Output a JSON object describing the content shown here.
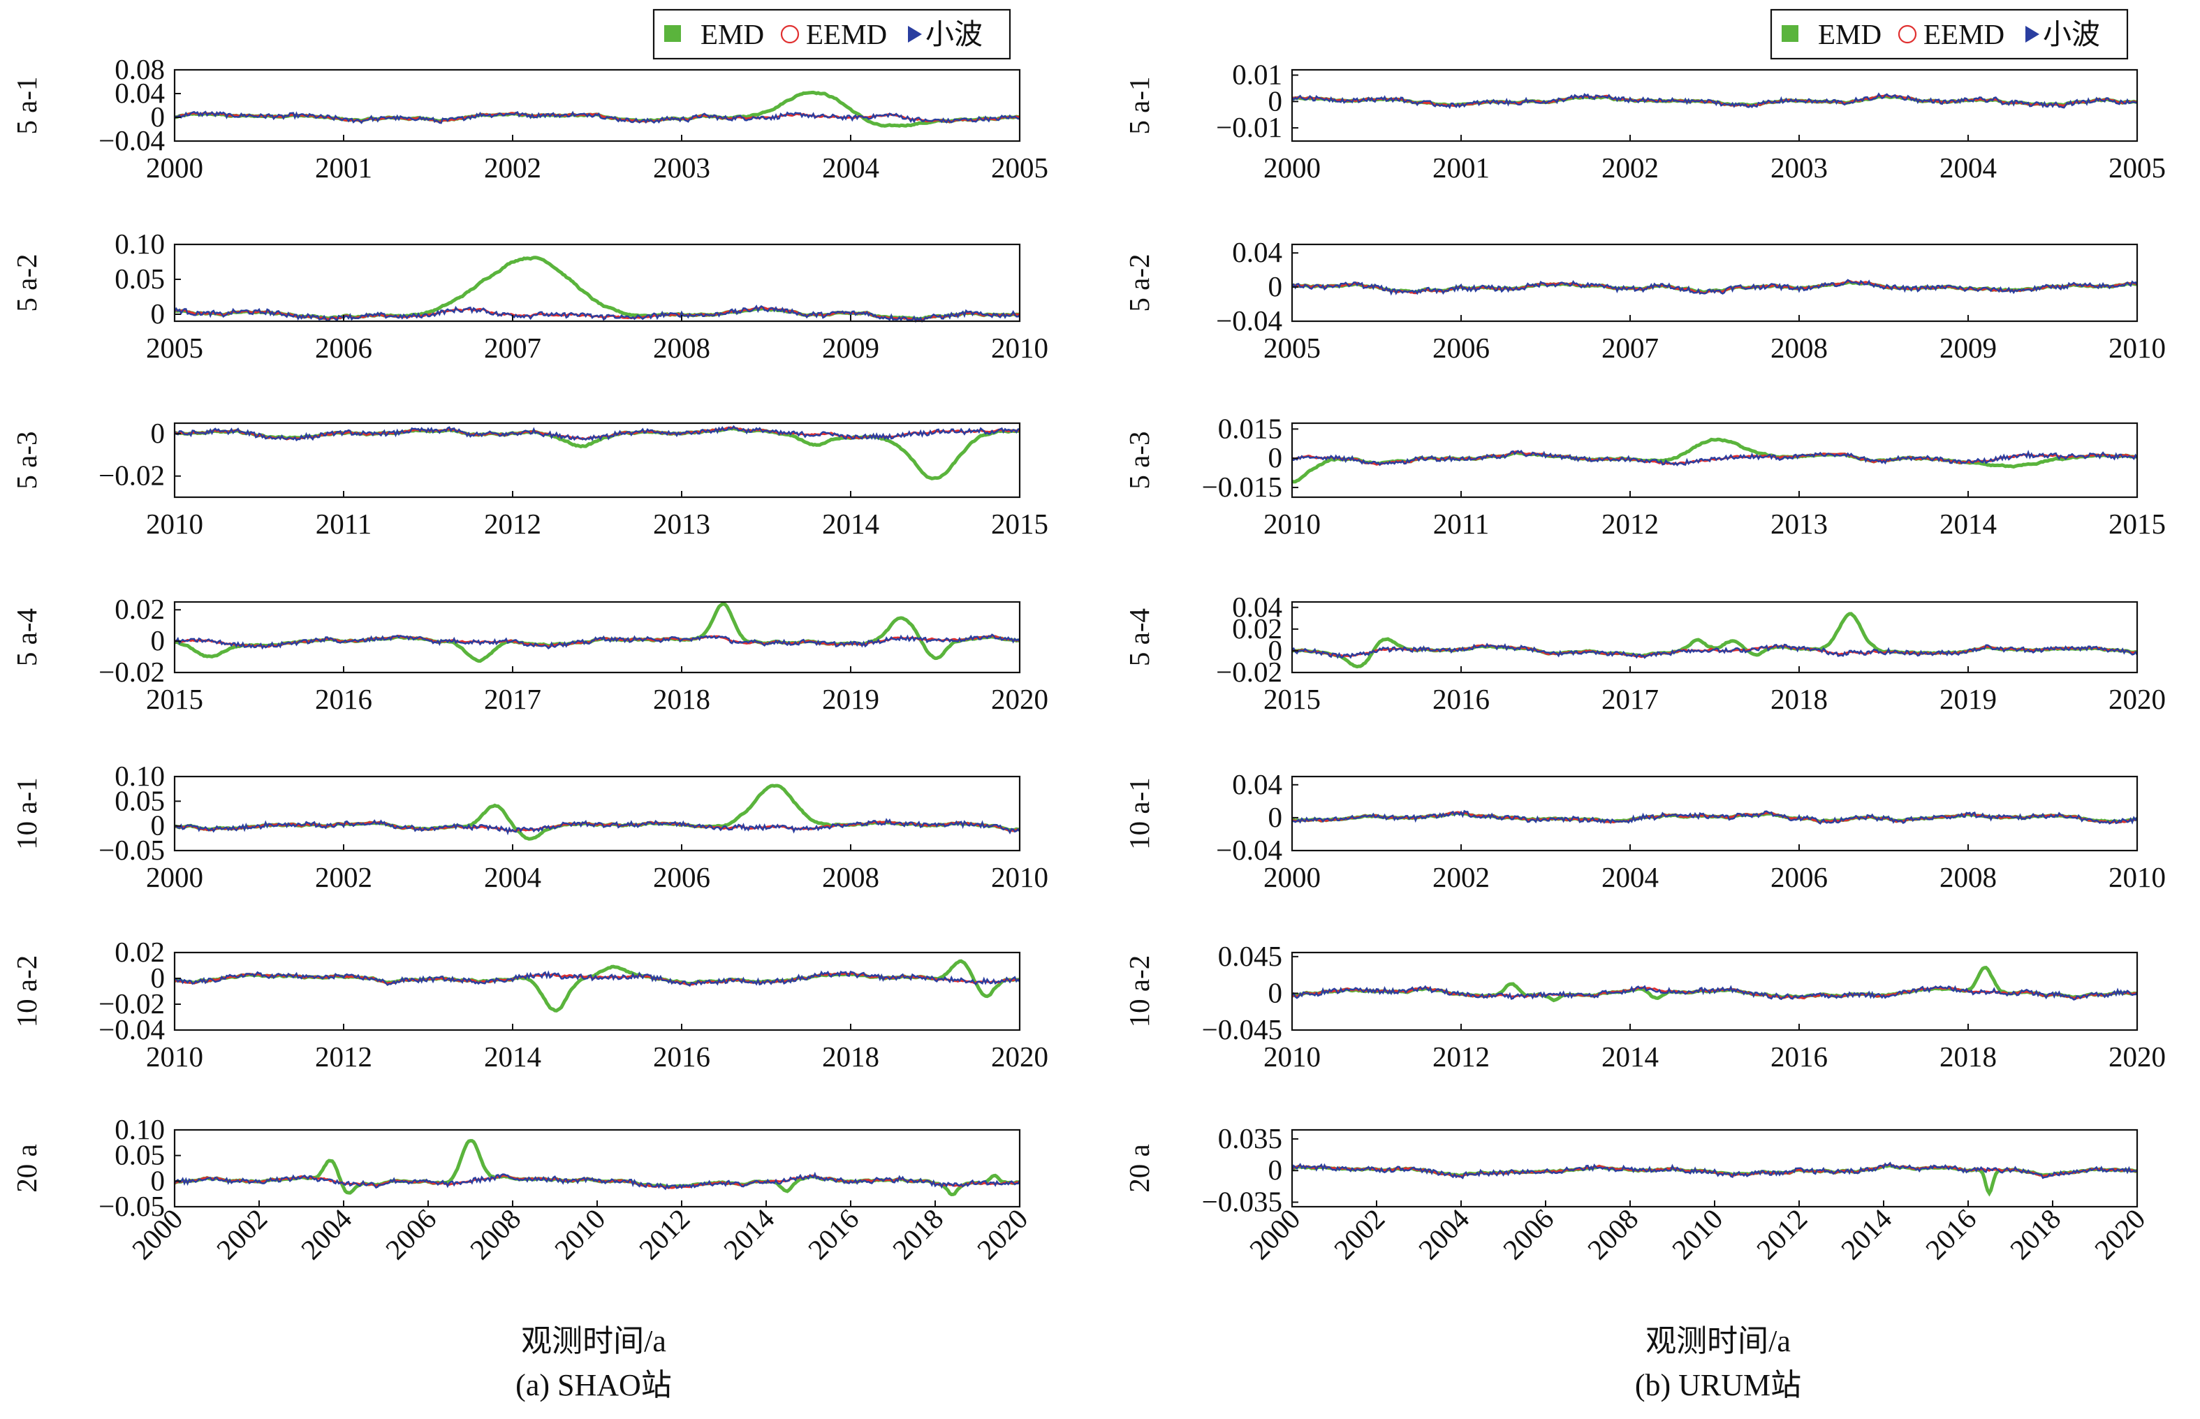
{
  "figure": {
    "xlabel_left": "观测时间/a",
    "caption_left": "(a) SHAO站",
    "xlabel_right": "观测时间/a",
    "caption_right": "(b) URUM站"
  },
  "legend": {
    "items": [
      {
        "label": "EMD",
        "marker": "square",
        "color": "#5ab43c"
      },
      {
        "label": "EEMD",
        "marker": "circle",
        "color": "#e03030"
      },
      {
        "label": "小波",
        "marker": "triangle",
        "color": "#2a3ea0"
      }
    ]
  },
  "colors": {
    "emd": "#5ab43c",
    "eemd": "#e03030",
    "wavelet": "#2a3ea0"
  },
  "chart_data": [
    {
      "type": "line",
      "ylabel": "5 a-1",
      "x": [
        2000,
        2001,
        2002,
        2003,
        2004,
        2005
      ],
      "yticks": [
        -0.04,
        0,
        0.04,
        0.08
      ],
      "ytick_labels": [
        "−0.04",
        "0",
        "0.04",
        "0.08"
      ],
      "xlim": [
        2000,
        2005
      ],
      "ylim": [
        -0.04,
        0.08
      ],
      "series": [
        {
          "name": "EMD",
          "color": "#5ab43c",
          "bumps": [
            {
              "x": 2003.8,
              "amp": 0.04,
              "w": 0.25
            },
            {
              "x": 2004.2,
              "amp": -0.02,
              "w": 0.2
            }
          ]
        },
        {
          "name": "EEMD",
          "color": "#e03030"
        },
        {
          "name": "小波",
          "color": "#2a3ea0"
        }
      ]
    },
    {
      "type": "line",
      "ylabel": "5 a-2",
      "x": [
        2005,
        2006,
        2007,
        2008,
        2009,
        2010
      ],
      "yticks": [
        0,
        0.05,
        0.1
      ],
      "ytick_labels": [
        "0",
        "0.05",
        "0.10"
      ],
      "xlim": [
        2005,
        2010
      ],
      "ylim": [
        -0.01,
        0.1
      ],
      "series": [
        {
          "name": "EMD",
          "color": "#5ab43c",
          "bumps": [
            {
              "x": 2007.1,
              "amp": 0.082,
              "w": 0.34
            }
          ]
        },
        {
          "name": "EEMD",
          "color": "#e03030"
        },
        {
          "name": "小波",
          "color": "#2a3ea0"
        }
      ]
    },
    {
      "type": "line",
      "ylabel": "5 a-3",
      "x": [
        2010,
        2011,
        2012,
        2013,
        2014,
        2015
      ],
      "yticks": [
        -0.02,
        0
      ],
      "ytick_labels": [
        "−0.02",
        "0"
      ],
      "xlim": [
        2010,
        2015
      ],
      "ylim": [
        -0.03,
        0.005
      ],
      "series": [
        {
          "name": "EMD",
          "color": "#5ab43c",
          "bumps": [
            {
              "x": 2014.5,
              "amp": -0.022,
              "w": 0.18
            },
            {
              "x": 2012.4,
              "amp": -0.004,
              "w": 0.12
            },
            {
              "x": 2013.8,
              "amp": -0.005,
              "w": 0.12
            }
          ]
        },
        {
          "name": "EEMD",
          "color": "#e03030"
        },
        {
          "name": "小波",
          "color": "#2a3ea0"
        }
      ]
    },
    {
      "type": "line",
      "ylabel": "5 a-4",
      "x": [
        2015,
        2016,
        2017,
        2018,
        2019,
        2020
      ],
      "yticks": [
        -0.02,
        0,
        0.02
      ],
      "ytick_labels": [
        "−0.02",
        "0",
        "0.02"
      ],
      "xlim": [
        2015,
        2020
      ],
      "ylim": [
        -0.02,
        0.025
      ],
      "series": [
        {
          "name": "EMD",
          "color": "#5ab43c",
          "bumps": [
            {
              "x": 2015.2,
              "amp": -0.01,
              "w": 0.12
            },
            {
              "x": 2016.8,
              "amp": -0.012,
              "w": 0.1
            },
            {
              "x": 2018.25,
              "amp": 0.022,
              "w": 0.08
            },
            {
              "x": 2019.3,
              "amp": 0.013,
              "w": 0.1
            },
            {
              "x": 2019.5,
              "amp": -0.012,
              "w": 0.08
            }
          ]
        },
        {
          "name": "EEMD",
          "color": "#e03030"
        },
        {
          "name": "小波",
          "color": "#2a3ea0"
        }
      ]
    },
    {
      "type": "line",
      "ylabel": "10 a-1",
      "x": [
        2000,
        2002,
        2004,
        2006,
        2008,
        2010
      ],
      "yticks": [
        -0.05,
        0,
        0.05,
        0.1
      ],
      "ytick_labels": [
        "−0.05",
        "0",
        "0.05",
        "0.10"
      ],
      "xlim": [
        2000,
        2010
      ],
      "ylim": [
        -0.05,
        0.1
      ],
      "series": [
        {
          "name": "EMD",
          "color": "#5ab43c",
          "bumps": [
            {
              "x": 2003.8,
              "amp": 0.045,
              "w": 0.2
            },
            {
              "x": 2004.2,
              "amp": -0.02,
              "w": 0.18
            },
            {
              "x": 2007.1,
              "amp": 0.083,
              "w": 0.35
            }
          ]
        },
        {
          "name": "EEMD",
          "color": "#e03030"
        },
        {
          "name": "小波",
          "color": "#2a3ea0"
        }
      ]
    },
    {
      "type": "line",
      "ylabel": "10 a-2",
      "x": [
        2010,
        2012,
        2014,
        2016,
        2018,
        2020
      ],
      "yticks": [
        -0.04,
        -0.02,
        0,
        0.02
      ],
      "ytick_labels": [
        "−0.04",
        "−0.02",
        "0",
        "0.02"
      ],
      "xlim": [
        2010,
        2020
      ],
      "ylim": [
        -0.04,
        0.02
      ],
      "series": [
        {
          "name": "EMD",
          "color": "#5ab43c",
          "bumps": [
            {
              "x": 2014.5,
              "amp": -0.027,
              "w": 0.2
            },
            {
              "x": 2015.2,
              "amp": 0.008,
              "w": 0.2
            },
            {
              "x": 2019.3,
              "amp": 0.015,
              "w": 0.15
            },
            {
              "x": 2019.6,
              "amp": -0.012,
              "w": 0.12
            }
          ]
        },
        {
          "name": "EEMD",
          "color": "#e03030"
        },
        {
          "name": "小波",
          "color": "#2a3ea0"
        }
      ]
    },
    {
      "type": "line",
      "ylabel": "20 a",
      "x": [
        2000,
        2002,
        2004,
        2006,
        2008,
        2010,
        2012,
        2014,
        2016,
        2018,
        2020
      ],
      "yticks": [
        -0.05,
        0,
        0.05,
        0.1
      ],
      "ytick_labels": [
        "−0.05",
        "0",
        "0.05",
        "0.10"
      ],
      "xlim": [
        2000,
        2020
      ],
      "ylim": [
        -0.05,
        0.1
      ],
      "rotate_xticks": true,
      "series": [
        {
          "name": "EMD",
          "color": "#5ab43c",
          "bumps": [
            {
              "x": 2003.7,
              "amp": 0.04,
              "w": 0.22
            },
            {
              "x": 2004.1,
              "amp": -0.02,
              "w": 0.2
            },
            {
              "x": 2007.0,
              "amp": 0.08,
              "w": 0.3
            },
            {
              "x": 2014.5,
              "amp": -0.02,
              "w": 0.2
            },
            {
              "x": 2018.4,
              "amp": -0.02,
              "w": 0.15
            },
            {
              "x": 2019.4,
              "amp": 0.015,
              "w": 0.15
            }
          ]
        },
        {
          "name": "EEMD",
          "color": "#e03030"
        },
        {
          "name": "小波",
          "color": "#2a3ea0"
        }
      ]
    },
    {
      "type": "line",
      "ylabel": "5 a-1",
      "x": [
        2000,
        2001,
        2002,
        2003,
        2004,
        2005
      ],
      "yticks": [
        -0.01,
        0,
        0.01
      ],
      "ytick_labels": [
        "−0.01",
        "0",
        "0.01"
      ],
      "xlim": [
        2000,
        2005
      ],
      "ylim": [
        -0.015,
        0.012
      ],
      "series": [
        {
          "name": "EMD",
          "color": "#5ab43c",
          "bumps": []
        },
        {
          "name": "EEMD",
          "color": "#e03030"
        },
        {
          "name": "小波",
          "color": "#2a3ea0"
        }
      ]
    },
    {
      "type": "line",
      "ylabel": "5 a-2",
      "x": [
        2005,
        2006,
        2007,
        2008,
        2009,
        2010
      ],
      "yticks": [
        -0.04,
        0,
        0.04
      ],
      "ytick_labels": [
        "−0.04",
        "0",
        "0.04"
      ],
      "xlim": [
        2005,
        2010
      ],
      "ylim": [
        -0.04,
        0.05
      ],
      "series": [
        {
          "name": "EMD",
          "color": "#5ab43c",
          "bumps": []
        },
        {
          "name": "EEMD",
          "color": "#e03030"
        },
        {
          "name": "小波",
          "color": "#2a3ea0"
        }
      ]
    },
    {
      "type": "line",
      "ylabel": "5 a-3",
      "x": [
        2010,
        2011,
        2012,
        2013,
        2014,
        2015
      ],
      "yticks": [
        -0.015,
        0,
        0.015
      ],
      "ytick_labels": [
        "−0.015",
        "0",
        "0.015"
      ],
      "xlim": [
        2010,
        2015
      ],
      "ylim": [
        -0.02,
        0.018
      ],
      "series": [
        {
          "name": "EMD",
          "color": "#5ab43c",
          "bumps": [
            {
              "x": 2010.0,
              "amp": -0.012,
              "w": 0.15
            },
            {
              "x": 2012.5,
              "amp": 0.01,
              "w": 0.2
            },
            {
              "x": 2014.3,
              "amp": -0.005,
              "w": 0.2
            }
          ]
        },
        {
          "name": "EEMD",
          "color": "#e03030"
        },
        {
          "name": "小波",
          "color": "#2a3ea0"
        }
      ]
    },
    {
      "type": "line",
      "ylabel": "5 a-4",
      "x": [
        2015,
        2016,
        2017,
        2018,
        2019,
        2020
      ],
      "yticks": [
        -0.02,
        0,
        0.02,
        0.04
      ],
      "ytick_labels": [
        "−0.02",
        "0",
        "0.02",
        "0.04"
      ],
      "xlim": [
        2015,
        2020
      ],
      "ylim": [
        -0.02,
        0.045
      ],
      "series": [
        {
          "name": "EMD",
          "color": "#5ab43c",
          "bumps": [
            {
              "x": 2015.4,
              "amp": -0.012,
              "w": 0.08
            },
            {
              "x": 2015.55,
              "amp": 0.01,
              "w": 0.08
            },
            {
              "x": 2017.4,
              "amp": 0.01,
              "w": 0.06
            },
            {
              "x": 2017.6,
              "amp": 0.009,
              "w": 0.07
            },
            {
              "x": 2017.75,
              "amp": -0.006,
              "w": 0.05
            },
            {
              "x": 2018.3,
              "amp": 0.035,
              "w": 0.1
            }
          ]
        },
        {
          "name": "EEMD",
          "color": "#e03030"
        },
        {
          "name": "小波",
          "color": "#2a3ea0"
        }
      ]
    },
    {
      "type": "line",
      "ylabel": "10 a-1",
      "x": [
        2000,
        2002,
        2004,
        2006,
        2008,
        2010
      ],
      "yticks": [
        -0.04,
        0,
        0.04
      ],
      "ytick_labels": [
        "−0.04",
        "0",
        "0.04"
      ],
      "xlim": [
        2000,
        2010
      ],
      "ylim": [
        -0.04,
        0.05
      ],
      "series": [
        {
          "name": "EMD",
          "color": "#5ab43c",
          "bumps": []
        },
        {
          "name": "EEMD",
          "color": "#e03030"
        },
        {
          "name": "小波",
          "color": "#2a3ea0"
        }
      ]
    },
    {
      "type": "line",
      "ylabel": "10 a-2",
      "x": [
        2010,
        2012,
        2014,
        2016,
        2018,
        2020
      ],
      "yticks": [
        -0.045,
        0,
        0.045
      ],
      "ytick_labels": [
        "−0.045",
        "0",
        "0.045"
      ],
      "xlim": [
        2010,
        2020
      ],
      "ylim": [
        -0.045,
        0.05
      ],
      "series": [
        {
          "name": "EMD",
          "color": "#5ab43c",
          "bumps": [
            {
              "x": 2012.6,
              "amp": 0.015,
              "w": 0.1
            },
            {
              "x": 2013.1,
              "amp": -0.007,
              "w": 0.08
            },
            {
              "x": 2014.3,
              "amp": -0.01,
              "w": 0.1
            },
            {
              "x": 2018.2,
              "amp": 0.03,
              "w": 0.12
            }
          ]
        },
        {
          "name": "EEMD",
          "color": "#e03030"
        },
        {
          "name": "小波",
          "color": "#2a3ea0"
        }
      ]
    },
    {
      "type": "line",
      "ylabel": "20 a",
      "x": [
        2000,
        2002,
        2004,
        2006,
        2008,
        2010,
        2012,
        2014,
        2016,
        2018,
        2020
      ],
      "yticks": [
        -0.035,
        0,
        0.035
      ],
      "ytick_labels": [
        "−0.035",
        "0",
        "0.035"
      ],
      "xlim": [
        2000,
        2020
      ],
      "ylim": [
        -0.04,
        0.045
      ],
      "rotate_xticks": true,
      "series": [
        {
          "name": "EMD",
          "color": "#5ab43c",
          "bumps": [
            {
              "x": 2016.5,
              "amp": -0.025,
              "w": 0.12
            }
          ]
        },
        {
          "name": "EEMD",
          "color": "#e03030"
        },
        {
          "name": "小波",
          "color": "#2a3ea0"
        }
      ]
    }
  ]
}
